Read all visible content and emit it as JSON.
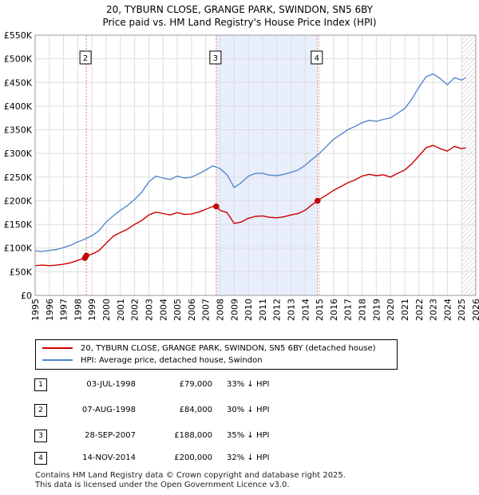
{
  "title_line1": "20, TYBURN CLOSE, GRANGE PARK, SWINDON, SN5 6BY",
  "title_line2": "Price paid vs. HM Land Registry's House Price Index (HPI)",
  "chart_data": {
    "type": "line",
    "x_range": [
      1995,
      2026
    ],
    "ylim": [
      0,
      550000
    ],
    "y_ticks": [
      {
        "value": 0,
        "label": "£0"
      },
      {
        "value": 50000,
        "label": "£50K"
      },
      {
        "value": 100000,
        "label": "£100K"
      },
      {
        "value": 150000,
        "label": "£150K"
      },
      {
        "value": 200000,
        "label": "£200K"
      },
      {
        "value": 250000,
        "label": "£250K"
      },
      {
        "value": 300000,
        "label": "£300K"
      },
      {
        "value": 350000,
        "label": "£350K"
      },
      {
        "value": 400000,
        "label": "£400K"
      },
      {
        "value": 450000,
        "label": "£450K"
      },
      {
        "value": 500000,
        "label": "£500K"
      },
      {
        "value": 550000,
        "label": "£550K"
      }
    ],
    "x_ticks": [
      "1995",
      "1996",
      "1997",
      "1998",
      "1999",
      "2000",
      "2001",
      "2002",
      "2003",
      "2004",
      "2005",
      "2006",
      "2007",
      "2008",
      "2009",
      "2010",
      "2011",
      "2012",
      "2013",
      "2014",
      "2015",
      "2016",
      "2017",
      "2018",
      "2019",
      "2020",
      "2021",
      "2022",
      "2023",
      "2024",
      "2025",
      "2026"
    ],
    "grid": true,
    "shaded_span": [
      2007.74,
      2014.87
    ],
    "hatched_from": 2025.0,
    "colors": {
      "property": "#cc0000",
      "hpi": "#5588cc",
      "marker_line": "#ee7777",
      "shade": "#e8eefb",
      "grid": "#dddddd"
    },
    "series": [
      {
        "name": "20, TYBURN CLOSE, GRANGE PARK, SWINDON, SN5 6BY (detached house)",
        "color": "#cc0000",
        "points": [
          [
            1995,
            63000
          ],
          [
            1995.5,
            64000
          ],
          [
            1996,
            63000
          ],
          [
            1996.5,
            64000
          ],
          [
            1997,
            66000
          ],
          [
            1997.5,
            69000
          ],
          [
            1998,
            74000
          ],
          [
            1998.5,
            79000
          ],
          [
            1998.6,
            84000
          ],
          [
            1999,
            87000
          ],
          [
            1999.5,
            95000
          ],
          [
            2000,
            110000
          ],
          [
            2000.5,
            125000
          ],
          [
            2001,
            133000
          ],
          [
            2001.5,
            140000
          ],
          [
            2002,
            150000
          ],
          [
            2002.5,
            158000
          ],
          [
            2003,
            170000
          ],
          [
            2003.5,
            176000
          ],
          [
            2004,
            173000
          ],
          [
            2004.5,
            170000
          ],
          [
            2005,
            175000
          ],
          [
            2005.5,
            171000
          ],
          [
            2006,
            172000
          ],
          [
            2006.5,
            176000
          ],
          [
            2007,
            182000
          ],
          [
            2007.5,
            188000
          ],
          [
            2007.74,
            188000
          ],
          [
            2008,
            180000
          ],
          [
            2008.5,
            175000
          ],
          [
            2009,
            152000
          ],
          [
            2009.5,
            155000
          ],
          [
            2010,
            163000
          ],
          [
            2010.5,
            167000
          ],
          [
            2011,
            168000
          ],
          [
            2011.5,
            165000
          ],
          [
            2012,
            164000
          ],
          [
            2012.5,
            166000
          ],
          [
            2013,
            170000
          ],
          [
            2013.5,
            173000
          ],
          [
            2014,
            180000
          ],
          [
            2014.5,
            192000
          ],
          [
            2014.87,
            200000
          ],
          [
            2015,
            203000
          ],
          [
            2015.5,
            212000
          ],
          [
            2016,
            222000
          ],
          [
            2016.5,
            230000
          ],
          [
            2017,
            238000
          ],
          [
            2017.5,
            244000
          ],
          [
            2018,
            252000
          ],
          [
            2018.5,
            256000
          ],
          [
            2019,
            253000
          ],
          [
            2019.5,
            255000
          ],
          [
            2020,
            250000
          ],
          [
            2020.5,
            258000
          ],
          [
            2021,
            265000
          ],
          [
            2021.5,
            278000
          ],
          [
            2022,
            295000
          ],
          [
            2022.5,
            312000
          ],
          [
            2023,
            317000
          ],
          [
            2023.5,
            310000
          ],
          [
            2024,
            305000
          ],
          [
            2024.5,
            315000
          ],
          [
            2025,
            310000
          ],
          [
            2025.3,
            312000
          ]
        ]
      },
      {
        "name": "HPI: Average price, detached house, Swindon",
        "color": "#5588cc",
        "points": [
          [
            1995,
            94000
          ],
          [
            1995.5,
            93000
          ],
          [
            1996,
            95000
          ],
          [
            1996.5,
            97000
          ],
          [
            1997,
            101000
          ],
          [
            1997.5,
            106000
          ],
          [
            1998,
            113000
          ],
          [
            1998.5,
            119000
          ],
          [
            1999,
            126000
          ],
          [
            1999.5,
            137000
          ],
          [
            2000,
            155000
          ],
          [
            2000.5,
            168000
          ],
          [
            2001,
            180000
          ],
          [
            2001.5,
            190000
          ],
          [
            2002,
            203000
          ],
          [
            2002.5,
            218000
          ],
          [
            2003,
            240000
          ],
          [
            2003.5,
            252000
          ],
          [
            2004,
            248000
          ],
          [
            2004.5,
            245000
          ],
          [
            2005,
            252000
          ],
          [
            2005.5,
            248000
          ],
          [
            2006,
            250000
          ],
          [
            2006.5,
            257000
          ],
          [
            2007,
            265000
          ],
          [
            2007.5,
            274000
          ],
          [
            2008,
            268000
          ],
          [
            2008.5,
            255000
          ],
          [
            2009,
            228000
          ],
          [
            2009.5,
            238000
          ],
          [
            2010,
            252000
          ],
          [
            2010.5,
            258000
          ],
          [
            2011,
            258000
          ],
          [
            2011.5,
            254000
          ],
          [
            2012,
            253000
          ],
          [
            2012.5,
            256000
          ],
          [
            2013,
            260000
          ],
          [
            2013.5,
            265000
          ],
          [
            2014,
            275000
          ],
          [
            2014.5,
            288000
          ],
          [
            2015,
            300000
          ],
          [
            2015.5,
            315000
          ],
          [
            2016,
            330000
          ],
          [
            2016.5,
            340000
          ],
          [
            2017,
            350000
          ],
          [
            2017.5,
            357000
          ],
          [
            2018,
            365000
          ],
          [
            2018.5,
            370000
          ],
          [
            2019,
            368000
          ],
          [
            2019.5,
            372000
          ],
          [
            2020,
            375000
          ],
          [
            2020.5,
            385000
          ],
          [
            2021,
            395000
          ],
          [
            2021.5,
            415000
          ],
          [
            2022,
            440000
          ],
          [
            2022.5,
            462000
          ],
          [
            2023,
            468000
          ],
          [
            2023.5,
            458000
          ],
          [
            2024,
            445000
          ],
          [
            2024.5,
            460000
          ],
          [
            2025,
            455000
          ],
          [
            2025.3,
            460000
          ]
        ]
      }
    ],
    "markers": [
      {
        "label": "1",
        "x": 1998.5,
        "value": 79000
      },
      {
        "label": "2",
        "x": 1998.6,
        "value": 84000
      },
      {
        "label": "3",
        "x": 2007.74,
        "value": 188000
      },
      {
        "label": "4",
        "x": 2014.87,
        "value": 200000
      }
    ],
    "marker_boxes": [
      "2",
      "3",
      "4"
    ]
  },
  "legend": {
    "property_label": "20, TYBURN CLOSE, GRANGE PARK, SWINDON, SN5 6BY (detached house)",
    "hpi_label": "HPI: Average price, detached house, Swindon"
  },
  "transactions": [
    {
      "num": "1",
      "date": "03-JUL-1998",
      "price": "£79,000",
      "hpi": "33% ↓ HPI"
    },
    {
      "num": "2",
      "date": "07-AUG-1998",
      "price": "£84,000",
      "hpi": "30% ↓ HPI"
    },
    {
      "num": "3",
      "date": "28-SEP-2007",
      "price": "£188,000",
      "hpi": "35% ↓ HPI"
    },
    {
      "num": "4",
      "date": "14-NOV-2014",
      "price": "£200,000",
      "hpi": "32% ↓ HPI"
    }
  ],
  "footer_line1": "Contains HM Land Registry data © Crown copyright and database right 2025.",
  "footer_line2": "This data is licensed under the Open Government Licence v3.0."
}
